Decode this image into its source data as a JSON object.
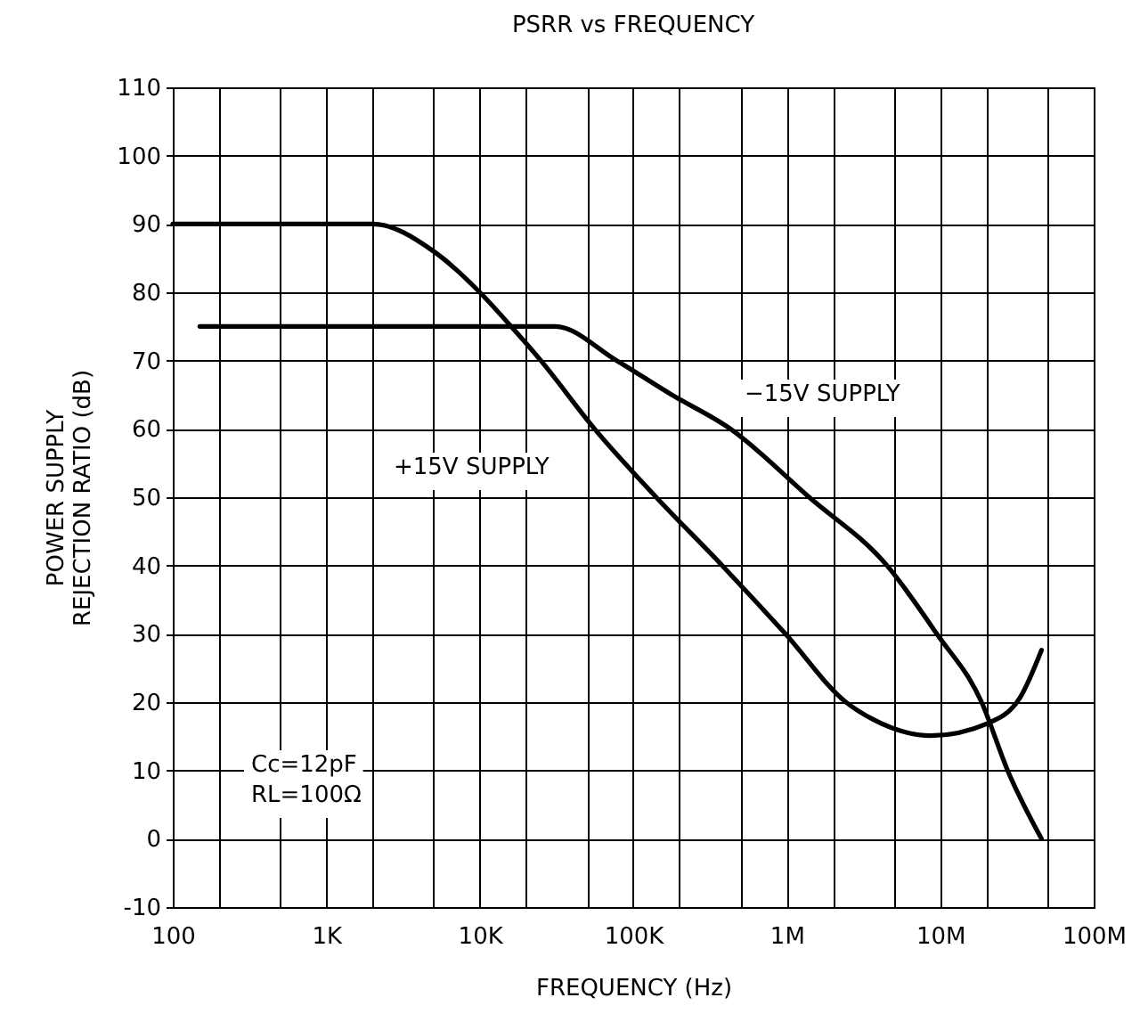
{
  "chart_data": {
    "type": "line",
    "title": "PSRR vs FREQUENCY",
    "xlabel": "FREQUENCY (Hz)",
    "ylabel": "POWER SUPPLY\nREJECTION RATIO (dB)",
    "log": "x",
    "grid": true,
    "legend": false,
    "marker": "none",
    "line_style": "solid",
    "xlim": [
      100,
      100000000
    ],
    "ylim": [
      -10,
      110
    ],
    "xticks": [
      100,
      {
        "value": 200,
        "label": null
      },
      {
        "value": 500,
        "label": null
      },
      {
        "value": 1000,
        "label": "1K"
      },
      {
        "value": 2000,
        "label": null
      },
      {
        "value": 5000,
        "label": null
      },
      {
        "value": 10000,
        "label": "10K"
      },
      {
        "value": 20000,
        "label": null
      },
      {
        "value": 50000,
        "label": null
      },
      {
        "value": 100000,
        "label": "100K"
      },
      {
        "value": 200000,
        "label": null
      },
      {
        "value": 500000,
        "label": null
      },
      {
        "value": 1000000,
        "label": "1M"
      },
      {
        "value": 2000000,
        "label": null
      },
      {
        "value": 5000000,
        "label": null
      },
      {
        "value": 10000000,
        "label": "10M"
      },
      {
        "value": 20000000,
        "label": null
      },
      {
        "value": 50000000,
        "label": null
      },
      {
        "value": 100000000,
        "label": "100M"
      }
    ],
    "yticks": [
      -10,
      0,
      10,
      20,
      30,
      40,
      50,
      60,
      70,
      80,
      90,
      100,
      110
    ],
    "series": [
      {
        "color": "#000000",
        "x": [
          100,
          2000,
          5000,
          10000,
          16000,
          25000,
          56000,
          141000,
          380000,
          980000,
          2430000,
          3700000,
          8700000,
          20400000,
          33000000,
          45700000
        ],
        "values": [
          90,
          90,
          86,
          80,
          75,
          70,
          60,
          50,
          40,
          30,
          20,
          17.4,
          15.1,
          16.9,
          20.6,
          27.6
        ]
      },
      {
        "color": "#000000",
        "x": [
          150,
          31000,
          78000,
          178000,
          430000,
          1400000,
          4500000,
          9500000,
          18600000,
          27500000,
          45700000
        ],
        "values": [
          75,
          75,
          70,
          65,
          60,
          50,
          40,
          30,
          20,
          10,
          0
        ]
      }
    ],
    "annotations": [
      "+15V SUPPLY",
      "−15V SUPPLY",
      "Cc=12pF\nRL=100Ω"
    ]
  }
}
